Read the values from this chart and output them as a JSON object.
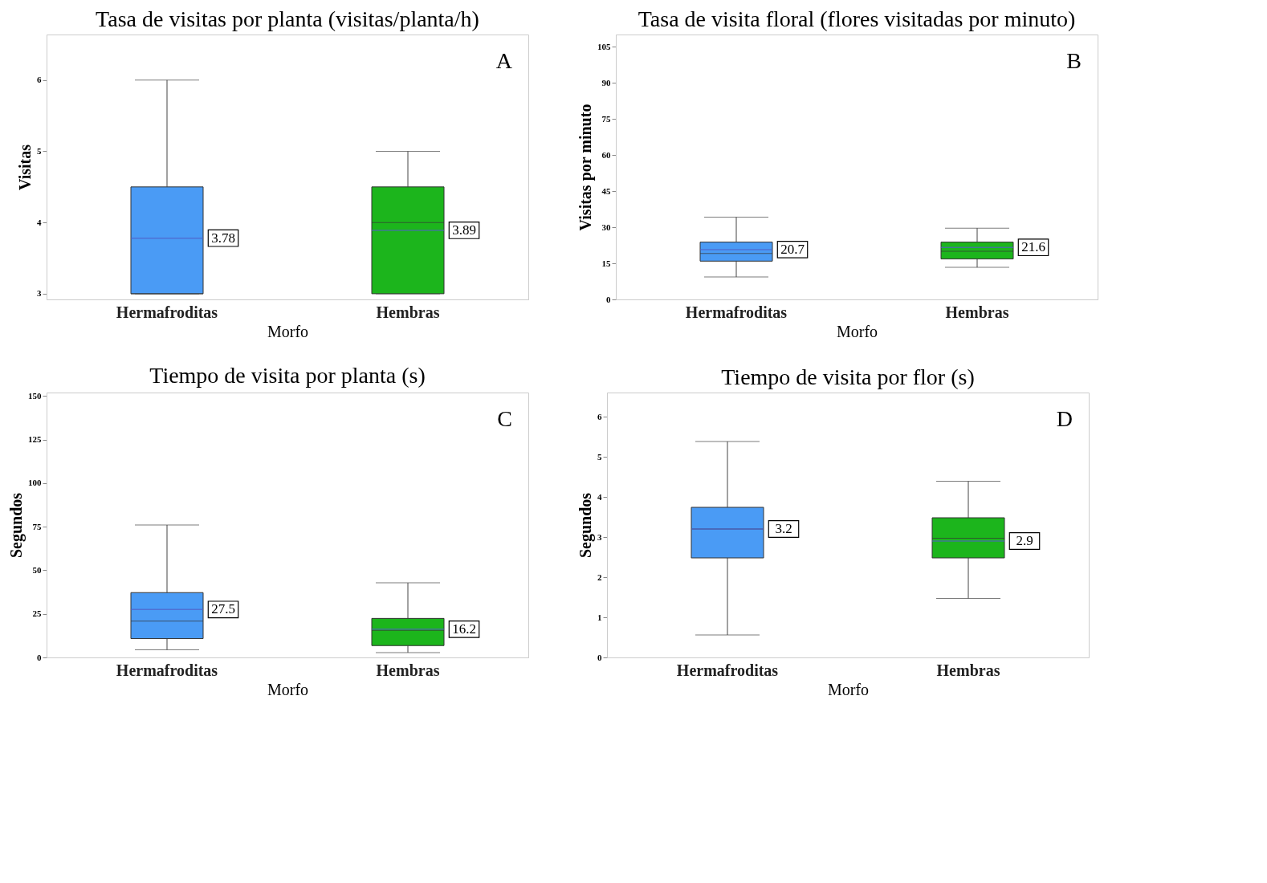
{
  "chart_data": [
    {
      "type": "box",
      "title": "Tasa de visitas por planta (visitas/planta/h)",
      "xlabel": "Morfo",
      "ylabel": "Visitas",
      "categories": [
        "Hermafroditas",
        "Hembras"
      ],
      "colors": [
        "#4a9bf5",
        "#1cb51c"
      ],
      "ylim": [
        2.92,
        6.64
      ],
      "yticks": [
        3,
        4,
        5,
        6
      ],
      "grid": false,
      "boxes": [
        {
          "low": 3,
          "q1": 3,
          "median": 3,
          "q3": 4.5,
          "high": 6,
          "mean": 3.78
        },
        {
          "low": 3,
          "q1": 3,
          "median": 4,
          "q3": 4.5,
          "high": 5,
          "mean": 3.89
        }
      ],
      "annotations": [
        "A",
        "3.78",
        "3.89"
      ]
    },
    {
      "type": "box",
      "title": "Tasa de visita floral (flores visitadas por minuto)",
      "xlabel": "Morfo",
      "ylabel": "Visitas por minuto",
      "categories": [
        "Hermafroditas",
        "Hembras"
      ],
      "colors": [
        "#4a9bf5",
        "#1cb51c"
      ],
      "ylim": [
        0,
        110
      ],
      "yticks": [
        0,
        15,
        30,
        45,
        60,
        75,
        90,
        105
      ],
      "grid": false,
      "boxes": [
        {
          "low": 9.3,
          "q1": 15.9,
          "median": 19.1,
          "q3": 23.8,
          "high": 34.2,
          "mean": 20.7
        },
        {
          "low": 13.3,
          "q1": 16.8,
          "median": 20,
          "q3": 23.8,
          "high": 29.6,
          "mean": 21.6
        }
      ],
      "annotations": [
        "B",
        "20.7",
        "21.6"
      ]
    },
    {
      "type": "box",
      "title": "Tiempo de visita por planta (s)",
      "xlabel": "Morfo",
      "ylabel": "Segundos",
      "categories": [
        "Hermafroditas",
        "Hembras"
      ],
      "colors": [
        "#4a9bf5",
        "#1cb51c"
      ],
      "ylim": [
        0,
        152
      ],
      "yticks": [
        0,
        25,
        50,
        75,
        100,
        125,
        150
      ],
      "grid": false,
      "boxes": [
        {
          "low": 4.4,
          "q1": 10.8,
          "median": 20.8,
          "q3": 37.2,
          "high": 76,
          "mean": 27.5
        },
        {
          "low": 2.8,
          "q1": 6.8,
          "median": 15.6,
          "q3": 22.4,
          "high": 42.8,
          "mean": 16.2
        }
      ],
      "annotations": [
        "C",
        "27.5",
        "16.2"
      ]
    },
    {
      "type": "box",
      "title": "Tiempo de visita por flor (s)",
      "xlabel": "Morfo",
      "ylabel": "Segundos",
      "categories": [
        "Hermafroditas",
        "Hembras"
      ],
      "colors": [
        "#4a9bf5",
        "#1cb51c"
      ],
      "ylim": [
        0,
        6.6
      ],
      "yticks": [
        0,
        1,
        2,
        3,
        4,
        5,
        6
      ],
      "grid": false,
      "boxes": [
        {
          "low": 0.56,
          "q1": 2.48,
          "median": 3.2,
          "q3": 3.74,
          "high": 5.38,
          "mean": 3.2
        },
        {
          "low": 1.47,
          "q1": 2.48,
          "median": 2.97,
          "q3": 3.48,
          "high": 4.39,
          "mean": 2.9
        }
      ],
      "annotations": [
        "D",
        "3.2",
        "2.9"
      ]
    }
  ]
}
